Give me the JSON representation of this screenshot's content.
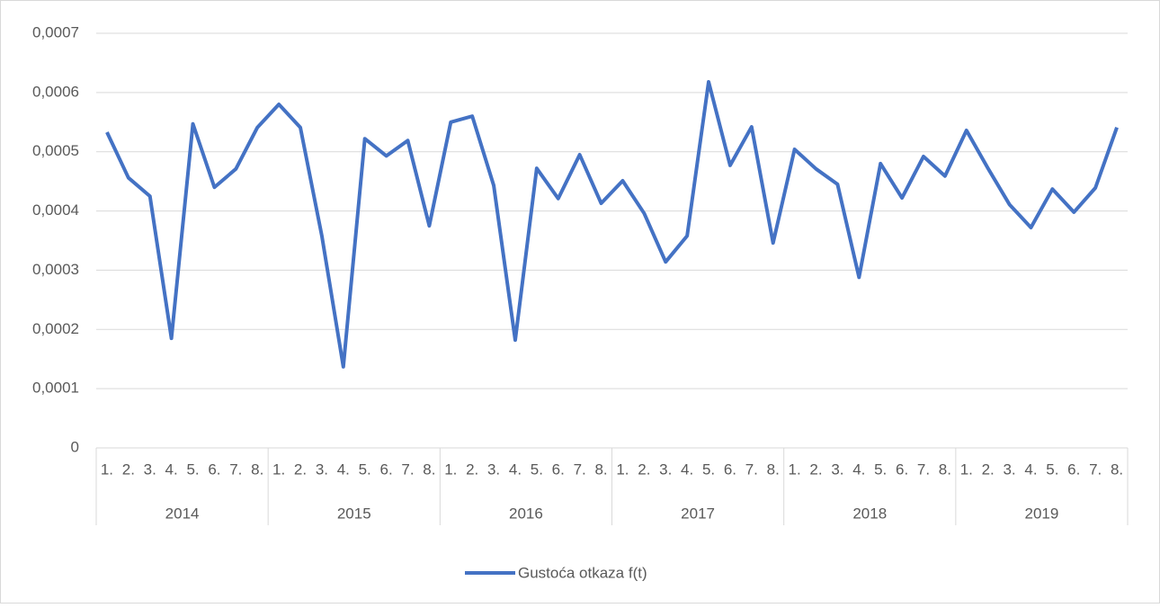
{
  "chart_data": {
    "type": "line",
    "categories": [
      "1.",
      "2.",
      "3.",
      "4.",
      "5.",
      "6.",
      "7.",
      "8.",
      "1.",
      "2.",
      "3.",
      "4.",
      "5.",
      "6.",
      "7.",
      "8.",
      "1.",
      "2.",
      "3.",
      "4.",
      "5.",
      "6.",
      "7.",
      "8.",
      "1.",
      "2.",
      "3.",
      "4.",
      "5.",
      "6.",
      "7.",
      "8.",
      "1.",
      "2.",
      "3.",
      "4.",
      "5.",
      "6.",
      "7.",
      "8.",
      "1.",
      "2.",
      "3.",
      "4.",
      "5.",
      "6.",
      "7.",
      "8."
    ],
    "category_groups": [
      "2014",
      "2015",
      "2016",
      "2017",
      "2018",
      "2019"
    ],
    "series": [
      {
        "name": "Gustoća otkaza f(t)",
        "color": "#4472c4",
        "values": [
          0.000533,
          0.000456,
          0.000425,
          0.000185,
          0.000547,
          0.00044,
          0.000471,
          0.000541,
          0.00058,
          0.000541,
          0.000358,
          0.000137,
          0.000522,
          0.000493,
          0.000519,
          0.000375,
          0.00055,
          0.00056,
          0.000443,
          0.000182,
          0.000472,
          0.000421,
          0.000495,
          0.000413,
          0.000451,
          0.000396,
          0.000314,
          0.000358,
          0.000618,
          0.000477,
          0.000542,
          0.000346,
          0.000504,
          0.000471,
          0.000445,
          0.000288,
          0.00048,
          0.000422,
          0.000492,
          0.000459,
          0.000536,
          0.000472,
          0.000411,
          0.000372,
          0.000437,
          0.000398,
          0.000439,
          0.000541
        ]
      }
    ],
    "ylim": [
      0,
      0.0007
    ],
    "yticks": [
      0,
      {
        "value": 0.0001,
        "label": "0,0001"
      },
      {
        "value": 0.0002,
        "label": "0,0002"
      },
      {
        "value": 0.0003,
        "label": "0,0003"
      },
      {
        "value": 0.0004,
        "label": "0,0004"
      },
      {
        "value": 0.0005,
        "label": "0,0005"
      },
      {
        "value": 0.0006,
        "label": "0,0006"
      },
      {
        "value": 0.0007,
        "label": "0,0007"
      }
    ],
    "grid": true,
    "legend": "bottom"
  }
}
